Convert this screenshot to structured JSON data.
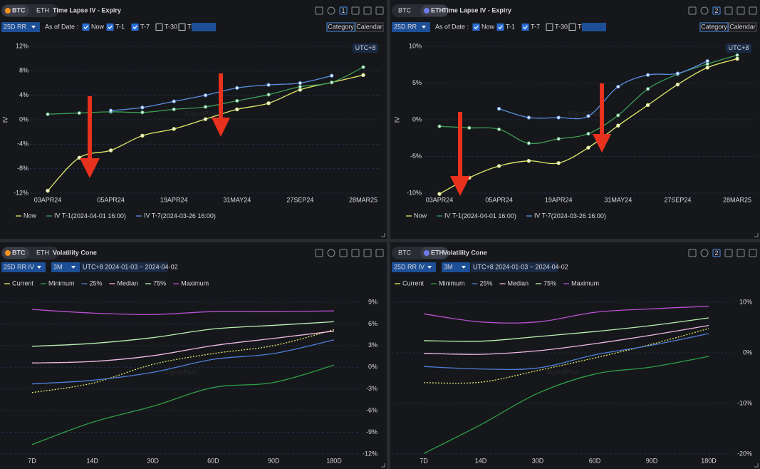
{
  "panels": [
    {
      "coin_tabs": [
        "BTC",
        "ETH"
      ],
      "active_coin": 0,
      "title": "Time Lapse IV - Expiry",
      "window_no": "1",
      "selector": "25D RR",
      "as_of_label": "As of Date :",
      "options": [
        "Now",
        "T-1",
        "T-7",
        "T-30",
        "T-"
      ],
      "checked": [
        true,
        true,
        true,
        false,
        false
      ],
      "modes": [
        "Category",
        "Calendar"
      ],
      "active_mode": 0,
      "badge": "UTC+8",
      "watermark": "SignalPlus"
    },
    {
      "coin_tabs": [
        "BTC",
        "ETH"
      ],
      "active_coin": 1,
      "title": "Time Lapse IV - Expiry",
      "window_no": "2",
      "selector": "25D RR",
      "as_of_label": "As of Date :",
      "options": [
        "Now",
        "T-1",
        "T-7",
        "T-30",
        "T-"
      ],
      "checked": [
        true,
        true,
        true,
        false,
        false
      ],
      "modes": [
        "Category",
        "Calendar"
      ],
      "active_mode": 0,
      "badge": "UTC+8",
      "watermark": "SignalPlus"
    },
    {
      "coin_tabs": [
        "BTC",
        "ETH"
      ],
      "active_coin": 0,
      "title": "Volatility Cone",
      "selector": "25D RR IV",
      "period": "3M",
      "range": "UTC+8 2024-01-03 ~ 2024-04-02",
      "watermark": "SignalPlus"
    },
    {
      "coin_tabs": [
        "BTC",
        "ETH"
      ],
      "active_coin": 1,
      "title": "Volatility Cone",
      "window_no": "2",
      "selector": "25D RR IV",
      "period": "3M",
      "range": "UTC+8 2024-01-03 ~ 2024-04-02",
      "watermark": "SignalPlus"
    }
  ],
  "chart_data": [
    {
      "type": "line",
      "y_label": "IV",
      "categories": [
        "03APR24",
        null,
        "05APR24",
        null,
        "19APR24",
        null,
        "31MAY24",
        null,
        "27SEP24",
        null,
        "28MAR25"
      ],
      "series": [
        {
          "name": "Now",
          "color": "#e3ec6a",
          "values": [
            -11.6,
            -6.2,
            -5.0,
            -2.6,
            -1.5,
            0.1,
            1.7,
            2.7,
            4.9,
            6.1,
            7.3
          ]
        },
        {
          "name": "IV T-1",
          "note": "(2024-04-01 16:00)",
          "color": "#3c9e55",
          "values": [
            0.9,
            1.1,
            1.3,
            1.2,
            1.7,
            2.1,
            3.1,
            4.1,
            5.4,
            6.1,
            8.6
          ]
        },
        {
          "name": "IV T-7",
          "note": "(2024-03-26 16:00)",
          "color": "#5a8ee0",
          "values": [
            null,
            null,
            1.5,
            2.0,
            3.0,
            4.0,
            5.2,
            5.7,
            6.0,
            7.2,
            null
          ]
        }
      ],
      "ylim": [
        -12,
        12
      ],
      "yticks": [
        {
          "value": -12,
          "label": "-12%"
        },
        {
          "value": -8,
          "label": "-8%"
        },
        {
          "value": -4,
          "label": "-4%"
        },
        {
          "value": 0,
          "label": "0%"
        },
        {
          "value": 4,
          "label": "4%"
        },
        {
          "value": 8,
          "label": "8%"
        },
        {
          "value": 12,
          "label": "12%"
        }
      ],
      "grid": true,
      "markers": true,
      "legend": "bottom-left"
    },
    {
      "type": "line",
      "y_label": "IV",
      "categories": [
        "03APR24",
        null,
        "05APR24",
        null,
        "19APR24",
        null,
        "31MAY24",
        null,
        "27SEP24",
        null,
        "28MAR25"
      ],
      "series": [
        {
          "name": "Now",
          "color": "#e3ec6a",
          "values": [
            -10.1,
            -7.9,
            -6.3,
            -5.6,
            -5.9,
            -3.8,
            -0.8,
            2.0,
            4.8,
            7.1,
            8.3
          ]
        },
        {
          "name": "IV T-1",
          "note": "(2024-04-01 16:00)",
          "color": "#3c9e55",
          "values": [
            -0.9,
            -1.1,
            -1.3,
            -3.2,
            -2.6,
            -1.9,
            0.6,
            4.2,
            6.2,
            7.6,
            8.8
          ]
        },
        {
          "name": "IV T-7",
          "note": "(2024-03-26 16:00)",
          "color": "#5a8ee0",
          "values": [
            null,
            null,
            1.5,
            0.3,
            0.3,
            0.5,
            4.5,
            6.1,
            6.3,
            8.0,
            null
          ]
        }
      ],
      "ylim": [
        -10,
        10
      ],
      "yticks": [
        {
          "value": -10,
          "label": "-10%"
        },
        {
          "value": -5,
          "label": "-5%"
        },
        {
          "value": 0,
          "label": "0%"
        },
        {
          "value": 5,
          "label": "5%"
        },
        {
          "value": 10,
          "label": "10%"
        }
      ],
      "grid": true,
      "markers": true,
      "legend": "bottom-left"
    },
    {
      "type": "line",
      "categories": [
        "7D",
        "14D",
        "30D",
        "60D",
        "90D",
        "180D"
      ],
      "series": [
        {
          "name": "Current",
          "color": "#e3ec6a",
          "dashed": true,
          "values": [
            -3.5,
            -2.2,
            0.4,
            1.9,
            3.0,
            5.2
          ]
        },
        {
          "name": "Minimum",
          "color": "#2e9e4a",
          "values": [
            -10.7,
            -7.6,
            -5.4,
            -2.8,
            -2.1,
            0.3
          ]
        },
        {
          "name": "25%",
          "color": "#4d7fd6",
          "values": [
            -2.3,
            -1.8,
            -0.7,
            1.1,
            1.9,
            3.8
          ]
        },
        {
          "name": "Median",
          "color": "#f0b8e0",
          "values": [
            0.6,
            0.8,
            1.6,
            3.0,
            4.0,
            5.0
          ]
        },
        {
          "name": "75%",
          "color": "#b8f0b0",
          "values": [
            2.9,
            3.3,
            4.1,
            5.3,
            5.8,
            6.3
          ]
        },
        {
          "name": "Maximum",
          "color": "#b84fd0",
          "values": [
            8.0,
            7.5,
            7.3,
            7.7,
            7.7,
            7.8
          ]
        }
      ],
      "ylim": [
        -12,
        9
      ],
      "yticks": [
        {
          "value": -12,
          "label": "-12%"
        },
        {
          "value": -9,
          "label": "-9%"
        },
        {
          "value": -6,
          "label": "-6%"
        },
        {
          "value": -3,
          "label": "-3%"
        },
        {
          "value": 0,
          "label": "0%"
        },
        {
          "value": 3,
          "label": "3%"
        },
        {
          "value": 6,
          "label": "6%"
        },
        {
          "value": 9,
          "label": "9%"
        }
      ],
      "grid": true,
      "markers": false,
      "legend": "top-left"
    },
    {
      "type": "line",
      "categories": [
        "7D",
        "14D",
        "30D",
        "60D",
        "90D",
        "180D"
      ],
      "series": [
        {
          "name": "Current",
          "color": "#e3ec6a",
          "dashed": true,
          "values": [
            -5.9,
            -5.8,
            -3.5,
            -1.0,
            1.7,
            4.8
          ]
        },
        {
          "name": "Minimum",
          "color": "#2e9e4a",
          "values": [
            -19.9,
            -14.2,
            -8.0,
            -4.2,
            -2.8,
            -0.7
          ]
        },
        {
          "name": "25%",
          "color": "#4d7fd6",
          "values": [
            -2.7,
            -3.2,
            -3.0,
            -0.4,
            1.5,
            3.8
          ]
        },
        {
          "name": "Median",
          "color": "#f0b8e0",
          "values": [
            -0.1,
            -0.3,
            0.4,
            1.8,
            3.5,
            5.4
          ]
        },
        {
          "name": "75%",
          "color": "#b8f0b0",
          "values": [
            2.4,
            2.3,
            3.2,
            4.2,
            5.4,
            6.9
          ]
        },
        {
          "name": "Maximum",
          "color": "#b84fd0",
          "values": [
            7.7,
            6.1,
            6.1,
            8.0,
            8.7,
            9.2
          ]
        }
      ],
      "ylim": [
        -20,
        10
      ],
      "yticks": [
        {
          "value": -20,
          "label": "-20%"
        },
        {
          "value": -10,
          "label": "-10%"
        },
        {
          "value": 0,
          "label": "0%"
        },
        {
          "value": 10,
          "label": "10%"
        }
      ],
      "grid": true,
      "markers": false,
      "legend": "top-left"
    }
  ]
}
